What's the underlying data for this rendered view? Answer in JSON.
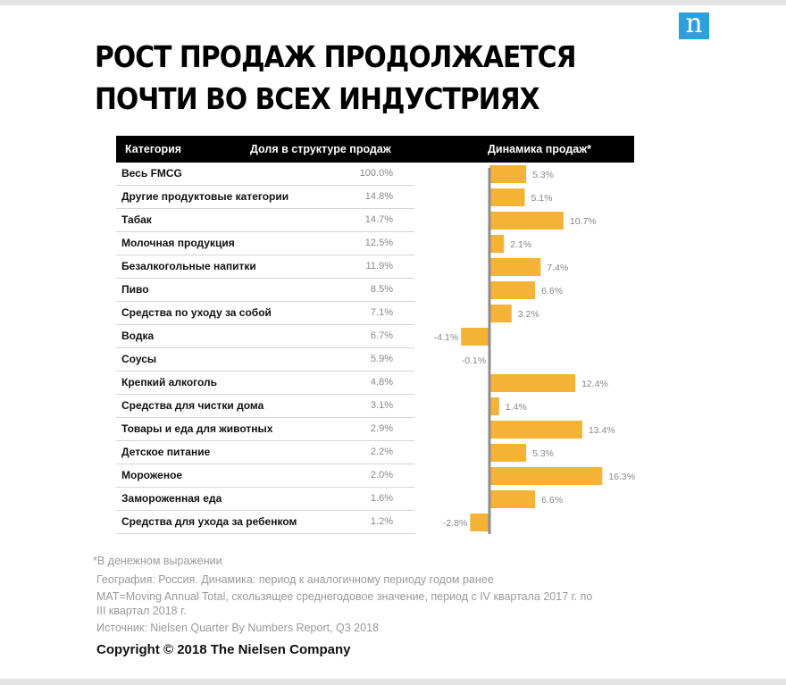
{
  "logo": {
    "letter": "n",
    "bg": "#2f9fdb"
  },
  "title": "РОСТ ПРОДАЖ ПРОДОЛЖАЕТСЯ ПОЧТИ ВО ВСЕХ ИНДУСТРИЯХ",
  "table_header": {
    "category": "Категория",
    "share": "Доля в структуре продаж",
    "dynamics": "Динамика продаж*"
  },
  "rows": [
    {
      "category": "Весь FMCG",
      "share": "100.0%",
      "label": "5.3%"
    },
    {
      "category": "Другие продуктовые категории",
      "share": "14.8%",
      "label": "5.1%"
    },
    {
      "category": "Табак",
      "share": "14.7%",
      "label": "10.7%"
    },
    {
      "category": "Молочная продукция",
      "share": "12.5%",
      "label": "2.1%"
    },
    {
      "category": "Безалкогольные напитки",
      "share": "11.9%",
      "label": "7.4%"
    },
    {
      "category": "Пиво",
      "share": "8.5%",
      "label": "6.6%"
    },
    {
      "category": "Средства по уходу за собой",
      "share": "7.1%",
      "label": "3.2%"
    },
    {
      "category": "Водка",
      "share": "6.7%",
      "label": "-4.1%"
    },
    {
      "category": "Соусы",
      "share": "5.9%",
      "label": "-0.1%"
    },
    {
      "category": "Крепкий алкоголь",
      "share": "4.8%",
      "label": "12.4%"
    },
    {
      "category": "Средства для чистки дома",
      "share": "3.1%",
      "label": "1.4%"
    },
    {
      "category": "Товары и еда для животных",
      "share": "2.9%",
      "label": "13.4%"
    },
    {
      "category": "Детское питание",
      "share": "2.2%",
      "label": "5.3%"
    },
    {
      "category": "Мороженое",
      "share": "2.0%",
      "label": "16.3%"
    },
    {
      "category": "Замороженная еда",
      "share": "1.6%",
      "label": "6.6%"
    },
    {
      "category": "Средства для ухода за ребенком",
      "share": "1.2%",
      "label": "-2.8%"
    }
  ],
  "chart_data": {
    "type": "bar",
    "orientation": "horizontal",
    "categories": [
      "Весь FMCG",
      "Другие продуктовые категории",
      "Табак",
      "Молочная продукция",
      "Безалкогольные напитки",
      "Пиво",
      "Средства по уходу за собой",
      "Водка",
      "Соусы",
      "Крепкий алкоголь",
      "Средства для чистки дома",
      "Товары и еда для животных",
      "Детское питание",
      "Мороженое",
      "Замороженная еда",
      "Средства для ухода за ребенком"
    ],
    "values": [
      5.3,
      5.1,
      10.7,
      2.1,
      7.4,
      6.6,
      3.2,
      -4.1,
      -0.1,
      12.4,
      1.4,
      13.4,
      5.3,
      16.3,
      6.6,
      -2.8
    ],
    "bar_color": "#f5b335",
    "axis_color": "#8c8c8c",
    "title": "Динамика продаж*"
  },
  "footnotes": {
    "note1": "*В денежном выражении",
    "note2": "География: Россия. Динамика: период к аналогичному периоду годом ранее",
    "note3a": "MAT=Moving Annual Total, скользящее среднегодовое значение, период с IV квартала 2017 г. по",
    "note3b": "III квартал 2018 г.",
    "note4": "Источник: Nielsen Quarter By Numbers Report, Q3 2018"
  },
  "copyright": "Copyright © 2018 The Nielsen Company"
}
